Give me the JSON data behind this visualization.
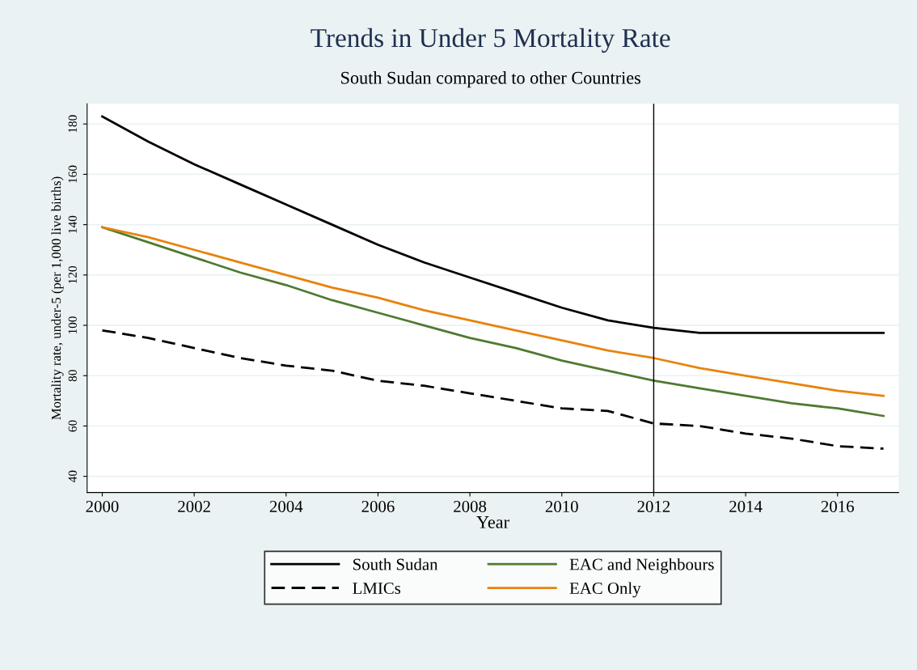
{
  "chart_data": {
    "type": "line",
    "title": "Trends in Under 5 Mortality Rate",
    "subtitle": "South Sudan compared to other Countries",
    "xlabel": "Year",
    "ylabel": "Mortality rate, under-5 (per 1,000 live births)",
    "x": [
      2000,
      2001,
      2002,
      2003,
      2004,
      2005,
      2006,
      2007,
      2008,
      2009,
      2010,
      2011,
      2012,
      2013,
      2014,
      2015,
      2016,
      2017
    ],
    "series": [
      {
        "name": "South Sudan",
        "color": "#000000",
        "line_style": "solid",
        "values": [
          183,
          173,
          164,
          156,
          148,
          140,
          132,
          125,
          119,
          113,
          107,
          102,
          99,
          97,
          97,
          97,
          97,
          97
        ]
      },
      {
        "name": "LMICs",
        "color": "#000000",
        "line_style": "dashed",
        "values": [
          98,
          95,
          91,
          87,
          84,
          82,
          78,
          76,
          73,
          70,
          67,
          66,
          61,
          60,
          57,
          55,
          52,
          51
        ]
      },
      {
        "name": "EAC and Neighbours",
        "color": "#4f7a32",
        "line_style": "solid",
        "values": [
          139,
          133,
          127,
          121,
          116,
          110,
          105,
          100,
          95,
          91,
          86,
          82,
          78,
          75,
          72,
          69,
          67,
          64
        ]
      },
      {
        "name": "EAC Only",
        "color": "#e8830c",
        "line_style": "solid",
        "values": [
          139,
          135,
          130,
          125,
          120,
          115,
          111,
          106,
          102,
          98,
          94,
          90,
          87,
          83,
          80,
          77,
          74,
          72
        ]
      }
    ],
    "xlim": [
      1999.67,
      2017.33
    ],
    "xticks": [
      2000,
      2002,
      2004,
      2006,
      2008,
      2010,
      2012,
      2014,
      2016
    ],
    "ylim": [
      33.6,
      188
    ],
    "yticks": [
      40,
      60,
      80,
      100,
      120,
      140,
      160,
      180
    ],
    "ref_lines": [
      {
        "axis": "x",
        "value": 2012,
        "color": "#000000"
      }
    ],
    "grid": "y",
    "legend": "bottom",
    "marker": "none"
  }
}
